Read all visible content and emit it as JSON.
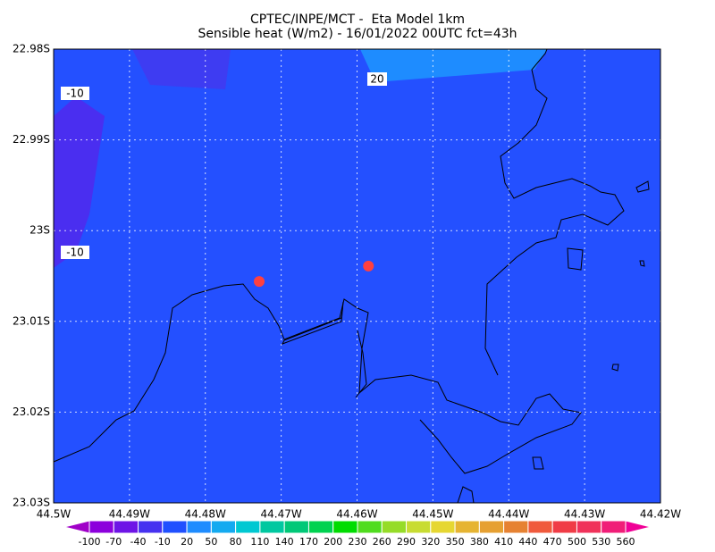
{
  "chart_data": {
    "type": "map",
    "title": "CPTEC/INPE/MCT -  Eta Model 1km",
    "subtitle": "Sensible heat (W/m2) - 16/01/2022 00UTC fct=43h",
    "xlim": [
      44.5,
      44.42
    ],
    "ylim": [
      23.03,
      22.98
    ],
    "xticks": [
      {
        "value": 44.5,
        "label": "44.5W"
      },
      {
        "value": 44.49,
        "label": "44.49W"
      },
      {
        "value": 44.48,
        "label": "44.48W"
      },
      {
        "value": 44.47,
        "label": "44.47W"
      },
      {
        "value": 44.46,
        "label": "44.46W"
      },
      {
        "value": 44.45,
        "label": "44.45W"
      },
      {
        "value": 44.44,
        "label": "44.44W"
      },
      {
        "value": 44.43,
        "label": "44.43W"
      },
      {
        "value": 44.42,
        "label": "44.42W"
      }
    ],
    "yticks": [
      {
        "value": 22.98,
        "label": "22.98S"
      },
      {
        "value": 22.99,
        "label": "22.99S"
      },
      {
        "value": 23.0,
        "label": "23S"
      },
      {
        "value": 23.01,
        "label": "23.01S"
      },
      {
        "value": 23.02,
        "label": "23.02S"
      },
      {
        "value": 23.03,
        "label": "23.03S"
      }
    ],
    "grid": true,
    "contour_labels": [
      -10,
      -10,
      20
    ],
    "points": {
      "lon": [
        44.4729,
        44.4585
      ],
      "lat": [
        23.0056,
        23.0039
      ],
      "color": "#ff4040"
    },
    "colorbar": {
      "levels": [
        -100,
        -70,
        -40,
        -10,
        20,
        50,
        80,
        110,
        140,
        170,
        200,
        230,
        260,
        290,
        320,
        350,
        380,
        410,
        440,
        470,
        500,
        530,
        560
      ],
      "colors": [
        "#a000c8",
        "#8c00dc",
        "#6e14e6",
        "#4632f0",
        "#2050ff",
        "#1e8cff",
        "#14aaf0",
        "#00c8d2",
        "#00c8a0",
        "#00c878",
        "#00d250",
        "#00dc00",
        "#50dc1e",
        "#96dc28",
        "#c8dc32",
        "#e6d732",
        "#e6b432",
        "#e6a032",
        "#e68232",
        "#f05a3c",
        "#f03c46",
        "#f0325a",
        "#f01e78",
        "#f00096"
      ]
    }
  }
}
